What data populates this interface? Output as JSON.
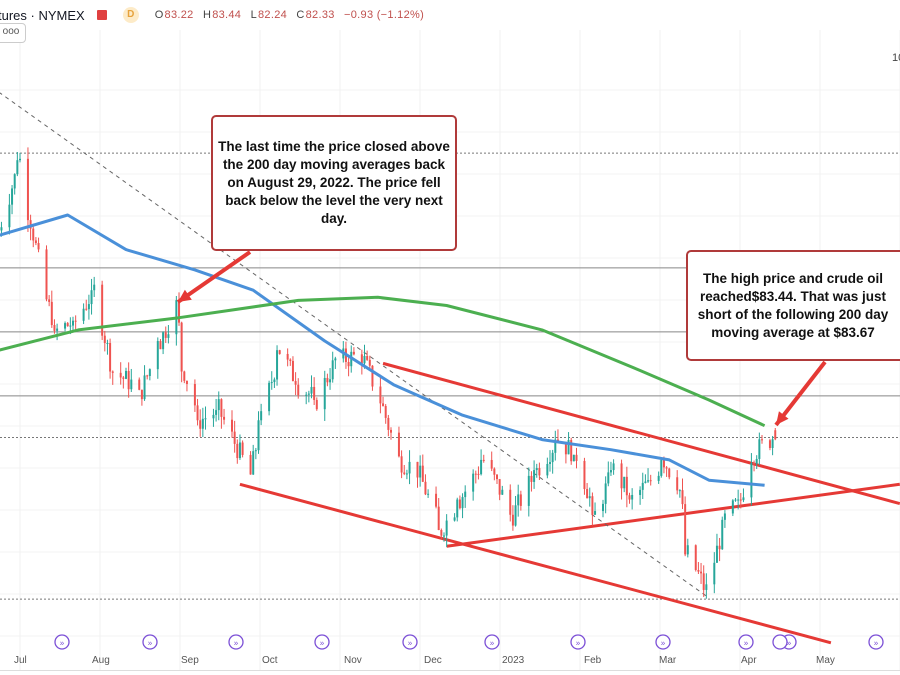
{
  "header": {
    "symbol": "tures · NYMEX",
    "interval_badge": "D",
    "open": "83.22",
    "high": "83.44",
    "low": "82.24",
    "close": "82.33",
    "change": "−0.93 (−1.12%)",
    "more_label": "ooo",
    "price_scale_partial": "10"
  },
  "colors": {
    "up": "#26a69a",
    "down": "#ef5350",
    "ma100": "#4a90d9",
    "ma200": "#4caf50",
    "trend": "#e53935",
    "annotation_border": "#b03a3a"
  },
  "annotations": [
    {
      "text": "The last time the price closed above the 200 day moving averages back on August 29, 2022. The price fell back below the level the very next day."
    },
    {
      "text": "The high price and crude oil reached$83.44. That was just short of the following 200 day moving average at $83.67"
    }
  ],
  "chart_data": {
    "type": "candlestick",
    "x_tick_labels": [
      "Jul",
      "Aug",
      "Sep",
      "Oct",
      "Nov",
      "Dec",
      "2023",
      "Feb",
      "Mar",
      "Apr",
      "May"
    ],
    "close_path": [
      [
        "2022-06-23",
        102.9
      ],
      [
        "2022-07-01",
        109.8
      ],
      [
        "2022-07-05",
        103.9
      ],
      [
        "2022-07-11",
        96
      ],
      [
        "2022-07-15",
        93
      ],
      [
        "2022-07-22",
        94
      ],
      [
        "2022-07-29",
        97
      ],
      [
        "2022-08-05",
        89
      ],
      [
        "2022-08-16",
        87.2
      ],
      [
        "2022-08-23",
        92
      ],
      [
        "2022-08-29",
        95.5
      ],
      [
        "2022-09-01",
        89
      ],
      [
        "2022-09-07",
        84.2
      ],
      [
        "2022-09-14",
        85.2
      ],
      [
        "2022-09-26",
        78.8
      ],
      [
        "2022-09-30",
        84.2
      ],
      [
        "2022-10-07",
        91.1
      ],
      [
        "2022-10-14",
        87.7
      ],
      [
        "2022-10-21",
        86.2
      ],
      [
        "2022-10-28",
        90.1
      ],
      [
        "2022-11-07",
        90.6
      ],
      [
        "2022-11-14",
        86.2
      ],
      [
        "2022-11-21",
        80.3
      ],
      [
        "2022-11-28",
        79.3
      ],
      [
        "2022-12-07",
        73.4
      ],
      [
        "2022-12-14",
        76.4
      ],
      [
        "2022-12-23",
        80.3
      ],
      [
        "2023-01-03",
        74.9
      ],
      [
        "2023-01-12",
        79.3
      ],
      [
        "2023-01-20",
        82.3
      ],
      [
        "2023-01-27",
        80.8
      ],
      [
        "2023-02-03",
        74.9
      ],
      [
        "2023-02-10",
        79.3
      ],
      [
        "2023-02-17",
        76.4
      ],
      [
        "2023-02-24",
        78.3
      ],
      [
        "2023-03-01",
        80.3
      ],
      [
        "2023-03-07",
        77.3
      ],
      [
        "2023-03-10",
        71
      ],
      [
        "2023-03-17",
        67.5
      ],
      [
        "2023-03-20",
        70.4
      ],
      [
        "2023-03-24",
        74.4
      ],
      [
        "2023-03-30",
        76.4
      ],
      [
        "2023-04-03",
        80.8
      ],
      [
        "2023-04-10",
        82.3
      ],
      [
        "2023-04-12",
        82.33
      ]
    ],
    "ma_100": [
      [
        "2022-06-23",
        102.4
      ],
      [
        "2022-07-19",
        104.4
      ],
      [
        "2022-08-10",
        101
      ],
      [
        "2022-09-05",
        99
      ],
      [
        "2022-09-27",
        97
      ],
      [
        "2022-10-24",
        92
      ],
      [
        "2022-11-19",
        87.7
      ],
      [
        "2022-12-15",
        84.7
      ],
      [
        "2023-01-14",
        82.3
      ],
      [
        "2023-02-09",
        81.3
      ],
      [
        "2023-03-03",
        80.3
      ],
      [
        "2023-03-18",
        78.3
      ],
      [
        "2023-04-08",
        77.8
      ]
    ],
    "ma_200": [
      [
        "2022-06-23",
        91.1
      ],
      [
        "2022-07-23",
        93.1
      ],
      [
        "2022-08-30",
        94.3
      ],
      [
        "2022-10-14",
        96
      ],
      [
        "2022-11-13",
        96.3
      ],
      [
        "2022-12-09",
        95.5
      ],
      [
        "2023-01-14",
        93.1
      ],
      [
        "2023-02-20",
        89.1
      ],
      [
        "2023-03-18",
        86.2
      ],
      [
        "2023-04-08",
        83.67
      ]
    ],
    "horizontal_levels": [
      {
        "price": 99.2,
        "style": "solid"
      },
      {
        "price": 92.9,
        "style": "solid"
      },
      {
        "price": 86.6,
        "style": "solid"
      },
      {
        "price": 82.5,
        "style": "dotted"
      },
      {
        "price": 66.6,
        "style": "dotted"
      },
      {
        "price": 110.5,
        "style": "dotted"
      }
    ],
    "trendlines": [
      {
        "color": "red",
        "from": [
          "2022-11-15",
          89.8
        ],
        "to": [
          "2023-05-29",
          76.0
        ]
      },
      {
        "color": "red",
        "from": [
          "2022-09-22",
          77.9
        ],
        "to": [
          "2023-05-03",
          62.3
        ]
      },
      {
        "color": "red",
        "from": [
          "2022-12-09",
          71.8
        ],
        "to": [
          "2023-05-29",
          77.9
        ]
      },
      {
        "color": "gray-dashed",
        "from": [
          "2022-06-23",
          116.5
        ],
        "to": [
          "2023-03-17",
          66.9
        ]
      }
    ],
    "high": 83.44,
    "ma_200_value": 83.67
  }
}
